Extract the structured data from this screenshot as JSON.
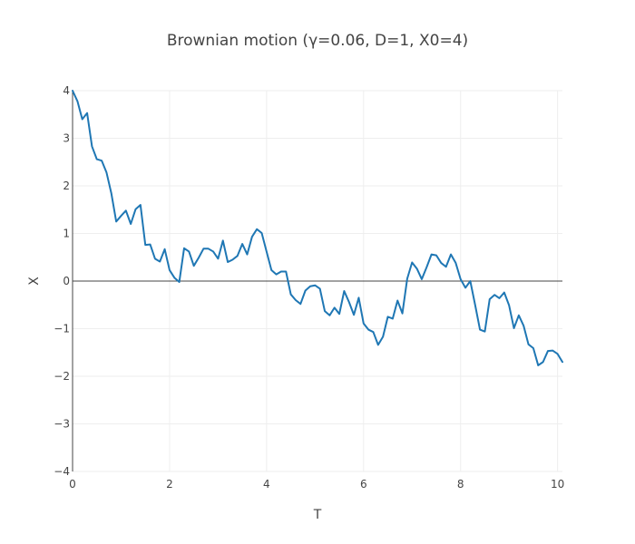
{
  "chart_data": {
    "type": "line",
    "title": "Brownian motion (γ=0.06, D=1, X0=4)",
    "xlabel": "T",
    "ylabel": "X",
    "xlim": [
      0,
      10.1
    ],
    "ylim": [
      -4,
      4
    ],
    "x_ticks": [
      "0",
      "2",
      "4",
      "6",
      "8",
      "10"
    ],
    "y_ticks": [
      "−4",
      "−3",
      "−2",
      "−1",
      "0",
      "1",
      "2",
      "3",
      "4"
    ],
    "x_tick_values": [
      0,
      2,
      4,
      6,
      8,
      10
    ],
    "y_tick_values": [
      -4,
      -3,
      -2,
      -1,
      0,
      1,
      2,
      3,
      4
    ],
    "grid": true,
    "colors": {
      "series": "#1f77b4"
    },
    "series": [
      {
        "points": [
          [
            0.0,
            4.0
          ],
          [
            0.1,
            3.78
          ],
          [
            0.2,
            3.4
          ],
          [
            0.3,
            3.53
          ],
          [
            0.4,
            2.83
          ],
          [
            0.5,
            2.56
          ],
          [
            0.6,
            2.53
          ],
          [
            0.7,
            2.28
          ],
          [
            0.8,
            1.84
          ],
          [
            0.9,
            1.25
          ],
          [
            1.0,
            1.37
          ],
          [
            1.1,
            1.48
          ],
          [
            1.2,
            1.2
          ],
          [
            1.3,
            1.51
          ],
          [
            1.4,
            1.6
          ],
          [
            1.5,
            0.76
          ],
          [
            1.6,
            0.77
          ],
          [
            1.7,
            0.47
          ],
          [
            1.8,
            0.41
          ],
          [
            1.9,
            0.67
          ],
          [
            2.0,
            0.23
          ],
          [
            2.1,
            0.07
          ],
          [
            2.2,
            -0.02
          ],
          [
            2.3,
            0.69
          ],
          [
            2.4,
            0.62
          ],
          [
            2.5,
            0.32
          ],
          [
            2.6,
            0.49
          ],
          [
            2.7,
            0.68
          ],
          [
            2.8,
            0.68
          ],
          [
            2.9,
            0.62
          ],
          [
            3.0,
            0.47
          ],
          [
            3.1,
            0.85
          ],
          [
            3.2,
            0.4
          ],
          [
            3.3,
            0.45
          ],
          [
            3.4,
            0.53
          ],
          [
            3.5,
            0.78
          ],
          [
            3.6,
            0.56
          ],
          [
            3.7,
            0.93
          ],
          [
            3.8,
            1.09
          ],
          [
            3.9,
            1.01
          ],
          [
            4.0,
            0.62
          ],
          [
            4.1,
            0.23
          ],
          [
            4.2,
            0.14
          ],
          [
            4.3,
            0.2
          ],
          [
            4.4,
            0.2
          ],
          [
            4.5,
            -0.28
          ],
          [
            4.6,
            -0.4
          ],
          [
            4.7,
            -0.48
          ],
          [
            4.8,
            -0.2
          ],
          [
            4.9,
            -0.11
          ],
          [
            5.0,
            -0.09
          ],
          [
            5.1,
            -0.16
          ],
          [
            5.2,
            -0.63
          ],
          [
            5.3,
            -0.72
          ],
          [
            5.4,
            -0.56
          ],
          [
            5.5,
            -0.69
          ],
          [
            5.6,
            -0.21
          ],
          [
            5.7,
            -0.44
          ],
          [
            5.8,
            -0.71
          ],
          [
            5.9,
            -0.35
          ],
          [
            6.0,
            -0.89
          ],
          [
            6.1,
            -1.02
          ],
          [
            6.2,
            -1.07
          ],
          [
            6.3,
            -1.34
          ],
          [
            6.4,
            -1.17
          ],
          [
            6.5,
            -0.75
          ],
          [
            6.6,
            -0.79
          ],
          [
            6.7,
            -0.41
          ],
          [
            6.8,
            -0.68
          ],
          [
            6.9,
            0.05
          ],
          [
            7.0,
            0.39
          ],
          [
            7.1,
            0.26
          ],
          [
            7.2,
            0.04
          ],
          [
            7.3,
            0.29
          ],
          [
            7.4,
            0.56
          ],
          [
            7.5,
            0.54
          ],
          [
            7.6,
            0.38
          ],
          [
            7.7,
            0.3
          ],
          [
            7.8,
            0.56
          ],
          [
            7.9,
            0.38
          ],
          [
            8.0,
            0.04
          ],
          [
            8.1,
            -0.14
          ],
          [
            8.2,
            0.0
          ],
          [
            8.3,
            -0.5
          ],
          [
            8.4,
            -1.02
          ],
          [
            8.5,
            -1.06
          ],
          [
            8.6,
            -0.38
          ],
          [
            8.7,
            -0.29
          ],
          [
            8.8,
            -0.36
          ],
          [
            8.9,
            -0.24
          ],
          [
            9.0,
            -0.51
          ],
          [
            9.1,
            -0.99
          ],
          [
            9.2,
            -0.72
          ],
          [
            9.3,
            -0.94
          ],
          [
            9.4,
            -1.33
          ],
          [
            9.5,
            -1.41
          ],
          [
            9.6,
            -1.77
          ],
          [
            9.7,
            -1.7
          ],
          [
            9.8,
            -1.47
          ],
          [
            9.9,
            -1.46
          ],
          [
            10.0,
            -1.53
          ],
          [
            10.1,
            -1.7
          ]
        ]
      }
    ]
  }
}
